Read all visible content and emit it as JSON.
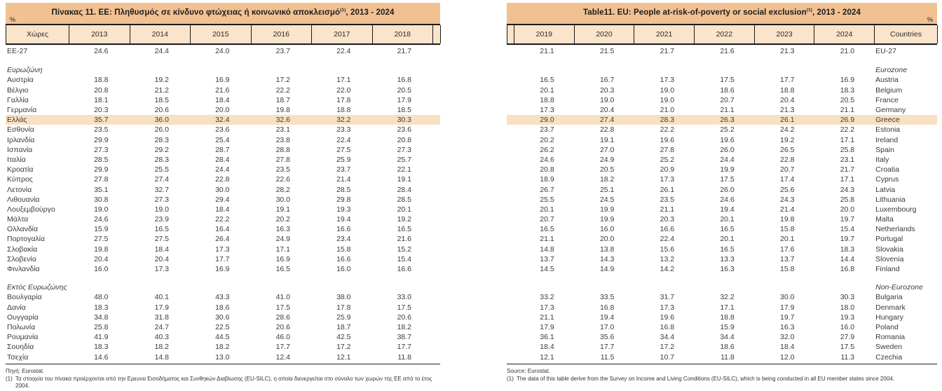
{
  "left_table": {
    "title_main": "Πίνακας 11. ΕΕ: Πληθυσμός σε κίνδυνο φτώχειας ή κοινωνικό αποκλεισμό",
    "title_sup": "(1)",
    "title_suffix": ", 2013 - 2024",
    "percent_label": "%",
    "columns": [
      "Χώρες",
      "2013",
      "2014",
      "2015",
      "2016",
      "2017",
      "2018"
    ],
    "source": "Πηγή: Eurostat.",
    "footnote_marker": "(1)",
    "footnote": "Τα στοιχεία του πίνακα προέρχονται από την Ερευνα Εισοδήματος και Συνθηκών Διαβίωσης (EU-SILC), η οποία διενεργείται στο σύνολο των χωρών της ΕΕ από το έτος 2004."
  },
  "right_table": {
    "title_main": "Table11. EU: People at-risk-of-poverty or social exclusion",
    "title_sup": "(1)",
    "title_suffix": ", 2013 - 2024",
    "percent_label": "%",
    "columns": [
      "2019",
      "2020",
      "2021",
      "2022",
      "2023",
      "2024",
      "Countries"
    ],
    "source": "Source: Eurostat.",
    "footnote_marker": "(1)",
    "footnote": "The data of this table derive from the Survey on Income and Living Conditions (EU-SILC), which is being conducted in all EU member states since 2004."
  },
  "colors": {
    "header_band": "#f2c192",
    "year_row": "#fae4cb",
    "highlight_row": "#f8e0c2"
  },
  "rows": [
    {
      "type": "data",
      "gr": "ΕΕ-27",
      "en": "EU-27",
      "left": [
        "24.6",
        "24.4",
        "24.0",
        "23.7",
        "22.4",
        "21.7"
      ],
      "right": [
        "21.1",
        "21.5",
        "21.7",
        "21.6",
        "21.3",
        "21.0"
      ]
    },
    {
      "type": "spacer1"
    },
    {
      "type": "section",
      "gr": "Ευρωζώνη",
      "en": "Eurozone"
    },
    {
      "type": "data",
      "gr": "Αυστρία",
      "en": "Austria",
      "left": [
        "18.8",
        "19.2",
        "16.9",
        "17.2",
        "17.1",
        "16.8"
      ],
      "right": [
        "16.5",
        "16.7",
        "17.3",
        "17.5",
        "17.7",
        "16.9"
      ]
    },
    {
      "type": "data",
      "gr": "Βέλγιο",
      "en": "Belgium",
      "left": [
        "20.8",
        "21.2",
        "21.6",
        "22.2",
        "22.0",
        "20.5"
      ],
      "right": [
        "20.1",
        "20.3",
        "19.0",
        "18.6",
        "18.8",
        "18.3"
      ]
    },
    {
      "type": "data",
      "gr": "Γαλλία",
      "en": "France",
      "left": [
        "18.1",
        "18.5",
        "18.4",
        "18.7",
        "17.8",
        "17.9"
      ],
      "right": [
        "18.8",
        "19.0",
        "19.0",
        "20.7",
        "20.4",
        "20.5"
      ]
    },
    {
      "type": "data",
      "gr": "Γερμανία",
      "en": "Germany",
      "left": [
        "20.3",
        "20.6",
        "20.0",
        "19.8",
        "18.8",
        "18.5"
      ],
      "right": [
        "17.3",
        "20.4",
        "21.0",
        "21.1",
        "21.3",
        "21.1"
      ]
    },
    {
      "type": "data",
      "highlight": true,
      "gr": "Ελλάς",
      "en": "Greece",
      "left": [
        "35.7",
        "36.0",
        "32.4",
        "32.6",
        "32.2",
        "30.3"
      ],
      "right": [
        "29.0",
        "27.4",
        "28.3",
        "26.3",
        "26.1",
        "26.9"
      ]
    },
    {
      "type": "data",
      "gr": "Εσθονία",
      "en": "Estonia",
      "left": [
        "23.5",
        "26.0",
        "23.6",
        "23.1",
        "23.3",
        "23.6"
      ],
      "right": [
        "23.7",
        "22.8",
        "22.2",
        "25.2",
        "24.2",
        "22.2"
      ]
    },
    {
      "type": "data",
      "gr": "Ιρλανδία",
      "en": "Ireland",
      "left": [
        "29.9",
        "28.3",
        "25.4",
        "23.8",
        "22.4",
        "20.8"
      ],
      "right": [
        "20.2",
        "19.1",
        "19.6",
        "19.6",
        "19.2",
        "17.1"
      ]
    },
    {
      "type": "data",
      "gr": "Ισπανία",
      "en": "Spain",
      "left": [
        "27.3",
        "29.2",
        "28.7",
        "28.8",
        "27.5",
        "27.3"
      ],
      "right": [
        "26.2",
        "27.0",
        "27.8",
        "26.0",
        "26.5",
        "25.8"
      ]
    },
    {
      "type": "data",
      "gr": "Ιταλία",
      "en": "Italy",
      "left": [
        "28.5",
        "28.3",
        "28.4",
        "27.8",
        "25.9",
        "25.7"
      ],
      "right": [
        "24.6",
        "24.9",
        "25.2",
        "24.4",
        "22.8",
        "23.1"
      ]
    },
    {
      "type": "data",
      "gr": "Κροατία",
      "en": "Croatia",
      "left": [
        "29.9",
        "25.5",
        "24.4",
        "23.5",
        "23.7",
        "22.1"
      ],
      "right": [
        "20.8",
        "20.5",
        "20.9",
        "19.9",
        "20.7",
        "21.7"
      ]
    },
    {
      "type": "data",
      "gr": "Κύπρος",
      "en": "Cyprus",
      "left": [
        "27.8",
        "27.4",
        "22.8",
        "22.6",
        "21.4",
        "19.1"
      ],
      "right": [
        "18.9",
        "18.2",
        "17.3",
        "17.5",
        "17.4",
        "17.1"
      ]
    },
    {
      "type": "data",
      "gr": "Λετονία",
      "en": "Latvia",
      "left": [
        "35.1",
        "32.7",
        "30.0",
        "28.2",
        "28.5",
        "28.4"
      ],
      "right": [
        "26.7",
        "25.1",
        "26.1",
        "26.0",
        "25.6",
        "24.3"
      ]
    },
    {
      "type": "data",
      "gr": "Λιθουανία",
      "en": "Lithuania",
      "left": [
        "30.8",
        "27.3",
        "29.4",
        "30.0",
        "29.8",
        "28.5"
      ],
      "right": [
        "25.5",
        "24.5",
        "23.5",
        "24.6",
        "24.3",
        "25.8"
      ]
    },
    {
      "type": "data",
      "gr": "Λουξεμβούργο",
      "en": "Luxembourg",
      "left": [
        "19.0",
        "19.0",
        "18.4",
        "19.1",
        "19.3",
        "20.1"
      ],
      "right": [
        "20.1",
        "19.9",
        "21.1",
        "19.4",
        "21.4",
        "20.0"
      ]
    },
    {
      "type": "data",
      "gr": "Μάλτα",
      "en": "Malta",
      "left": [
        "24.6",
        "23.9",
        "22.2",
        "20.2",
        "19.4",
        "19.2"
      ],
      "right": [
        "20.7",
        "19.9",
        "20.3",
        "20.1",
        "19.8",
        "19.7"
      ]
    },
    {
      "type": "data",
      "gr": "Ολλανδία",
      "en": "Netherlands",
      "left": [
        "15.9",
        "16.5",
        "16.4",
        "16.3",
        "16.6",
        "16.5"
      ],
      "right": [
        "16.5",
        "16.0",
        "16.6",
        "16.5",
        "15.8",
        "15.4"
      ]
    },
    {
      "type": "data",
      "gr": "Πορτογαλία",
      "en": "Portugal",
      "left": [
        "27.5",
        "27.5",
        "26.4",
        "24.9",
        "23.4",
        "21.6"
      ],
      "right": [
        "21.1",
        "20.0",
        "22.4",
        "20.1",
        "20.1",
        "19.7"
      ]
    },
    {
      "type": "data",
      "gr": "Σλοβακία",
      "en": "Slovakia",
      "left": [
        "19.8",
        "18.4",
        "17.3",
        "17.1",
        "15.8",
        "15.2"
      ],
      "right": [
        "14.8",
        "13.8",
        "15.6",
        "16.5",
        "17.6",
        "18.3"
      ]
    },
    {
      "type": "data",
      "gr": "Σλοβενία",
      "en": "Slovenia",
      "left": [
        "20.4",
        "20.4",
        "17.7",
        "16.9",
        "16.6",
        "15.4"
      ],
      "right": [
        "13.7",
        "14.3",
        "13.2",
        "13.3",
        "13.7",
        "14.4"
      ]
    },
    {
      "type": "data",
      "gr": "Φινλανδία",
      "en": "Finland",
      "left": [
        "16.0",
        "17.3",
        "16.9",
        "16.5",
        "16.0",
        "16.6"
      ],
      "right": [
        "14.5",
        "14.9",
        "14.2",
        "16.3",
        "15.8",
        "16.8"
      ]
    },
    {
      "type": "spacer2"
    },
    {
      "type": "section",
      "gr": "Εκτός Ευρωζώνης",
      "en": "Non-Eurozone"
    },
    {
      "type": "data",
      "gr": "Βουλγαρία",
      "en": "Bulgaria",
      "left": [
        "48.0",
        "40.1",
        "43.3",
        "41.0",
        "38.0",
        "33.0"
      ],
      "right": [
        "33.2",
        "33.5",
        "31.7",
        "32.2",
        "30.0",
        "30.3"
      ]
    },
    {
      "type": "data",
      "gr": "Δανία",
      "en": "Denmark",
      "left": [
        "18.3",
        "17.9",
        "18.6",
        "17.5",
        "17.8",
        "17.5"
      ],
      "right": [
        "17.3",
        "16.8",
        "17.3",
        "17.1",
        "17.9",
        "18.0"
      ]
    },
    {
      "type": "data",
      "gr": "Ουγγαρία",
      "en": "Hungary",
      "left": [
        "34.8",
        "31.8",
        "30.6",
        "28.6",
        "25.9",
        "20.6"
      ],
      "right": [
        "21.1",
        "19.4",
        "19.6",
        "18.8",
        "19.7",
        "19.3"
      ]
    },
    {
      "type": "data",
      "gr": "Πολωνία",
      "en": "Poland",
      "left": [
        "25.8",
        "24.7",
        "22.5",
        "20.6",
        "18.7",
        "18.2"
      ],
      "right": [
        "17.9",
        "17.0",
        "16.8",
        "15.9",
        "16.3",
        "16.0"
      ]
    },
    {
      "type": "data",
      "gr": "Ρουμανία",
      "en": "Romania",
      "left": [
        "41.9",
        "40.3",
        "44.5",
        "46.0",
        "42.5",
        "38.7"
      ],
      "right": [
        "36.1",
        "35.6",
        "34.4",
        "34.4",
        "32.0",
        "27.9"
      ]
    },
    {
      "type": "data",
      "gr": "Σουηδία",
      "en": "Sweden",
      "left": [
        "18.3",
        "18.2",
        "18.2",
        "17.7",
        "17.2",
        "17.7"
      ],
      "right": [
        "18.4",
        "17.7",
        "17.2",
        "18.6",
        "18.4",
        "17.5"
      ]
    },
    {
      "type": "data",
      "gr": "Τσεχία",
      "en": "Czechia",
      "left": [
        "14.6",
        "14.8",
        "13.0",
        "12.4",
        "12.1",
        "11.8"
      ],
      "right": [
        "12.1",
        "11.5",
        "10.7",
        "11.8",
        "12.0",
        "11.3"
      ]
    }
  ]
}
